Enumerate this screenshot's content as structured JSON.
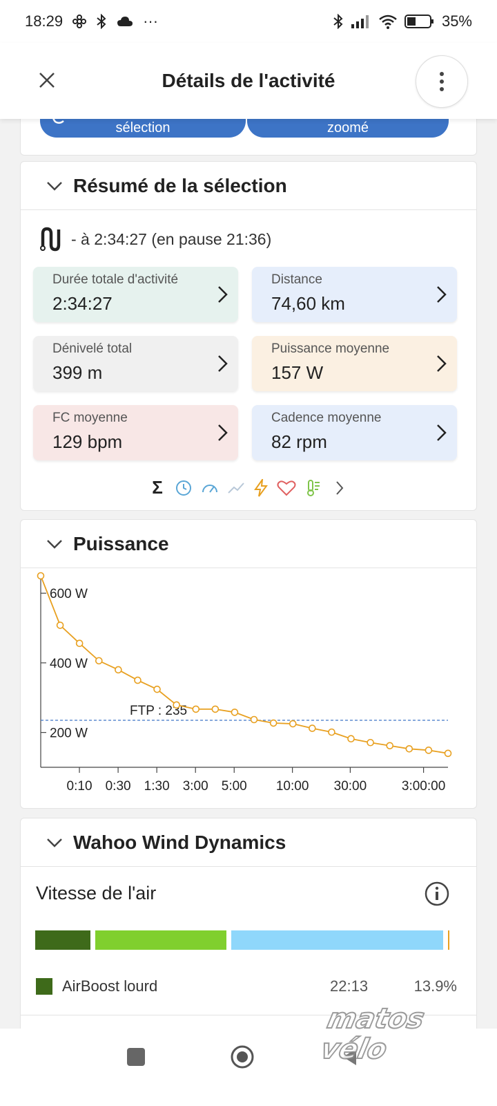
{
  "status_bar": {
    "time": "18:29",
    "dots": "···",
    "battery": "35%"
  },
  "header": {
    "title": "Détails de l'activité"
  },
  "top_buttons": {
    "left_label": "sélection",
    "right_label": "zoomé"
  },
  "summary": {
    "title": "Résumé de la sélection",
    "range_text": "- à 2:34:27 (en pause 21:36)",
    "tiles": [
      {
        "label": "Durée totale d'activité",
        "value": "2:34:27",
        "color": "#e6f2ee"
      },
      {
        "label": "Distance",
        "value": "74,60 km",
        "color": "#e6eefb"
      },
      {
        "label": "Dénivelé total",
        "value": "399 m",
        "color": "#f0f0f0"
      },
      {
        "label": "Puissance moyenne",
        "value": "157 W",
        "color": "#fbf0e2"
      },
      {
        "label": "FC moyenne",
        "value": "129 bpm",
        "color": "#f8e7e6"
      },
      {
        "label": "Cadence moyenne",
        "value": "82 rpm",
        "color": "#e6eefb"
      }
    ],
    "metric_icons": [
      "sigma-icon",
      "clock-icon",
      "speedometer-icon",
      "trend-icon",
      "lightning-icon",
      "heart-icon",
      "thermometer-icon",
      "chevron-right-icon"
    ]
  },
  "power": {
    "title": "Puissance",
    "ftp_label": "FTP : 235",
    "line_color": "#e8a020",
    "ftp_color": "#3d74c6"
  },
  "chart_data": {
    "type": "line",
    "xlabel": "",
    "ylabel": "",
    "ylim": [
      100,
      650
    ],
    "yticks": [
      200,
      400,
      600
    ],
    "ytick_labels": [
      "200 W",
      "400 W",
      "600 W"
    ],
    "xtick_labels": [
      "0:10",
      "0:30",
      "1:30",
      "3:00",
      "5:00",
      "10:00",
      "30:00",
      "3:00:00"
    ],
    "x_scale": "log (duration)",
    "ftp": 235,
    "series": [
      {
        "values": [
          650,
          508,
          456,
          406,
          380,
          350,
          324,
          279,
          267,
          267,
          258,
          237,
          227,
          225,
          212,
          201,
          182,
          171,
          162,
          153,
          149,
          140
        ]
      }
    ]
  },
  "wahoo": {
    "title": "Wahoo Wind Dynamics",
    "subtitle": "Vitesse de l'air",
    "bar_colors": [
      "#3e6a1a",
      "#80cf2e",
      "#8fd7fb",
      "#e8a020"
    ],
    "legend": {
      "label": "AirBoost lourd",
      "time": "22:13",
      "percent": "13.9%",
      "color": "#3e6a1a"
    }
  },
  "watermark": "matos vélo"
}
